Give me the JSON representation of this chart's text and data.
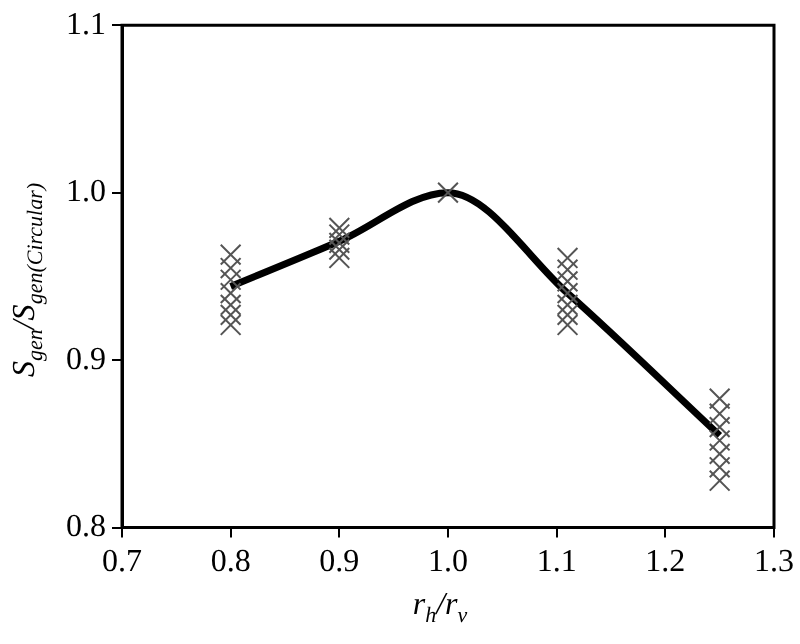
{
  "chart_data": {
    "type": "scatter",
    "xlabel": "r$_{h}$/r$_{v}$",
    "ylabel": "S$_{gen}$/S$_{gen(Circular)}$",
    "xlim": [
      0.7,
      1.3
    ],
    "xticks": [
      {
        "value": 0.7,
        "label": "0.7"
      },
      {
        "value": 0.8,
        "label": "0.8"
      },
      {
        "value": 0.9,
        "label": "0.9"
      },
      {
        "value": 1.0,
        "label": "1.0"
      },
      {
        "value": 1.1,
        "label": "1.1"
      },
      {
        "value": 1.2,
        "label": "1.2"
      },
      {
        "value": 1.3,
        "label": "1.3"
      }
    ],
    "ylim": [
      0.8,
      1.1
    ],
    "yticks": [
      {
        "value": 0.8,
        "label": "0.8"
      },
      {
        "value": 0.9,
        "label": "0.9"
      },
      {
        "value": 1.0,
        "label": "1.0"
      },
      {
        "value": 1.1,
        "label": "1.1"
      }
    ],
    "grid": false,
    "legend": false,
    "series": [
      {
        "type": "scatter",
        "marker": "cross",
        "color": "#555555",
        "x": [
          0.8,
          0.8,
          0.8,
          0.8,
          0.8,
          0.8,
          0.8,
          0.9,
          0.9,
          0.9,
          0.9,
          0.9,
          1.0,
          1.11,
          1.11,
          1.11,
          1.11,
          1.11,
          1.11,
          1.11,
          1.25,
          1.25,
          1.25,
          1.25,
          1.25,
          1.25,
          1.25
        ],
        "values": [
          0.963,
          0.955,
          0.948,
          0.94,
          0.933,
          0.927,
          0.921,
          0.979,
          0.975,
          0.97,
          0.966,
          0.961,
          1.0,
          0.961,
          0.954,
          0.947,
          0.94,
          0.933,
          0.927,
          0.921,
          0.877,
          0.868,
          0.86,
          0.852,
          0.844,
          0.836,
          0.828
        ]
      },
      {
        "type": "line",
        "marker": "none",
        "line_style": "solid",
        "color": "#000000",
        "x": [
          0.8,
          0.9,
          1.0,
          1.11,
          1.25
        ],
        "values": [
          0.944,
          0.971,
          1.0,
          0.94,
          0.855
        ]
      }
    ]
  }
}
